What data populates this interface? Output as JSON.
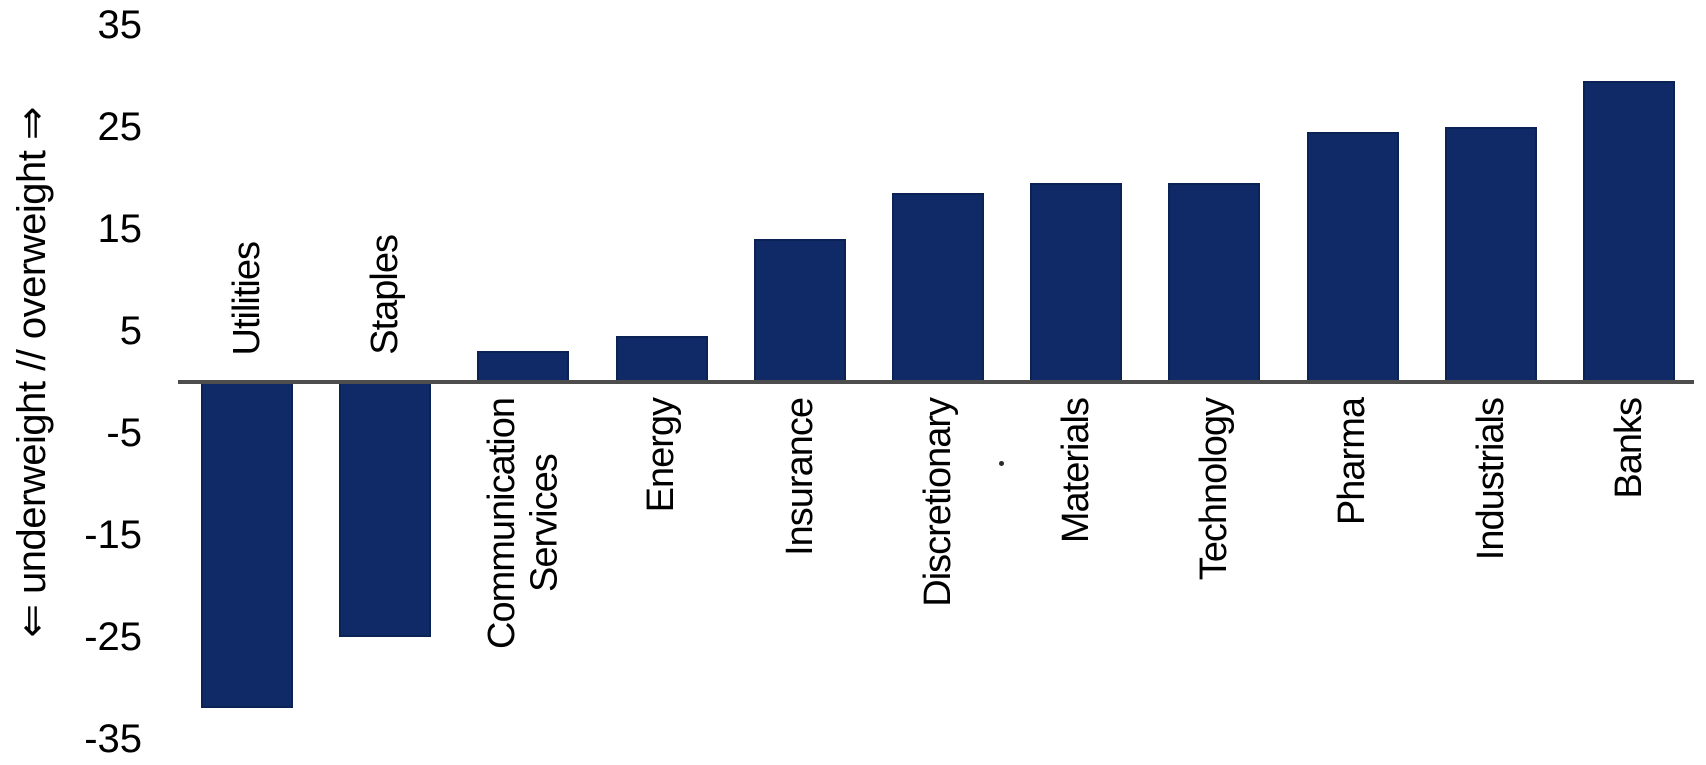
{
  "chart_data": {
    "type": "bar",
    "title": "",
    "categories": [
      "Utilities",
      "Staples",
      "Communication Services",
      "Energy",
      "Insurance",
      "Discretionary",
      "Materials",
      "Technology",
      "Pharma",
      "Industrials",
      "Banks"
    ],
    "values": [
      -32,
      -25,
      3,
      4.5,
      14,
      18.5,
      19.5,
      19.5,
      24.5,
      25,
      29.5
    ],
    "xlabel": "",
    "ylabel": "⇐ underweight // overweight ⇒",
    "yticks": [
      35,
      25,
      15,
      5,
      -5,
      -15,
      -25,
      -35
    ],
    "ylim": [
      -35,
      35
    ],
    "grid": false,
    "legend": false,
    "bar_color": "#0F2A66",
    "bar_border_color": "#0B2254",
    "axis_line_color": "#4D4D4D",
    "text_color": "#000000",
    "background_color": "#FFFFFF"
  }
}
